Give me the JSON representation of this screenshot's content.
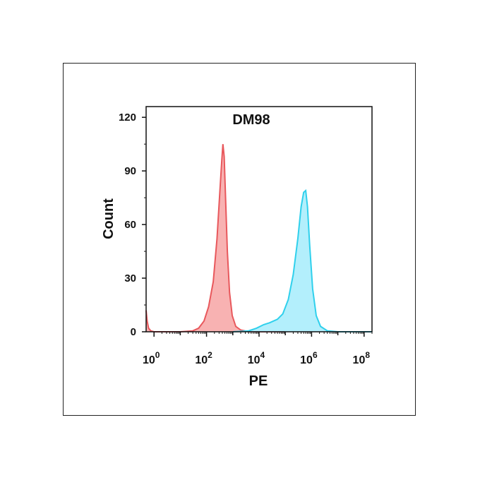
{
  "chart_data": {
    "type": "area",
    "title": "DM98",
    "xlabel": "PE",
    "ylabel": "Count",
    "x_scale": "log",
    "xlim": [
      0.5,
      200000000
    ],
    "ylim": [
      0,
      126
    ],
    "x_ticks": [
      {
        "value": 1,
        "base": "10",
        "exp": "0"
      },
      {
        "value": 100,
        "base": "10",
        "exp": "2"
      },
      {
        "value": 10000,
        "base": "10",
        "exp": "4"
      },
      {
        "value": 1000000,
        "base": "10",
        "exp": "6"
      },
      {
        "value": 100000000,
        "base": "10",
        "exp": "8"
      }
    ],
    "y_ticks": [
      0,
      30,
      60,
      90,
      120
    ],
    "grid": false,
    "series": [
      {
        "color": "#e8585c",
        "fill": "#f7a5a5",
        "points": [
          [
            0.5,
            12
          ],
          [
            0.55,
            6
          ],
          [
            0.62,
            2
          ],
          [
            0.75,
            0.5
          ],
          [
            1,
            0
          ],
          [
            10,
            0
          ],
          [
            30,
            0.5
          ],
          [
            50,
            2
          ],
          [
            80,
            6
          ],
          [
            120,
            14
          ],
          [
            180,
            28
          ],
          [
            250,
            52
          ],
          [
            320,
            78
          ],
          [
            380,
            96
          ],
          [
            420,
            105
          ],
          [
            470,
            98
          ],
          [
            540,
            72
          ],
          [
            620,
            45
          ],
          [
            750,
            22
          ],
          [
            950,
            9
          ],
          [
            1300,
            3
          ],
          [
            2000,
            1
          ],
          [
            4000,
            0
          ],
          [
            100000,
            0
          ]
        ]
      },
      {
        "color": "#2fd0ec",
        "fill": "#a6ecfb",
        "points": [
          [
            1000,
            0
          ],
          [
            4000,
            0.5
          ],
          [
            8000,
            2
          ],
          [
            15000,
            4
          ],
          [
            25000,
            5
          ],
          [
            50000,
            7
          ],
          [
            80000,
            10
          ],
          [
            130000,
            18
          ],
          [
            200000,
            32
          ],
          [
            300000,
            52
          ],
          [
            400000,
            70
          ],
          [
            500000,
            78
          ],
          [
            600000,
            79
          ],
          [
            700000,
            70
          ],
          [
            850000,
            48
          ],
          [
            1100000,
            24
          ],
          [
            1500000,
            9
          ],
          [
            2200000,
            3
          ],
          [
            4000000,
            0.5
          ],
          [
            10000000,
            0
          ],
          [
            200000000,
            0
          ]
        ]
      }
    ]
  }
}
